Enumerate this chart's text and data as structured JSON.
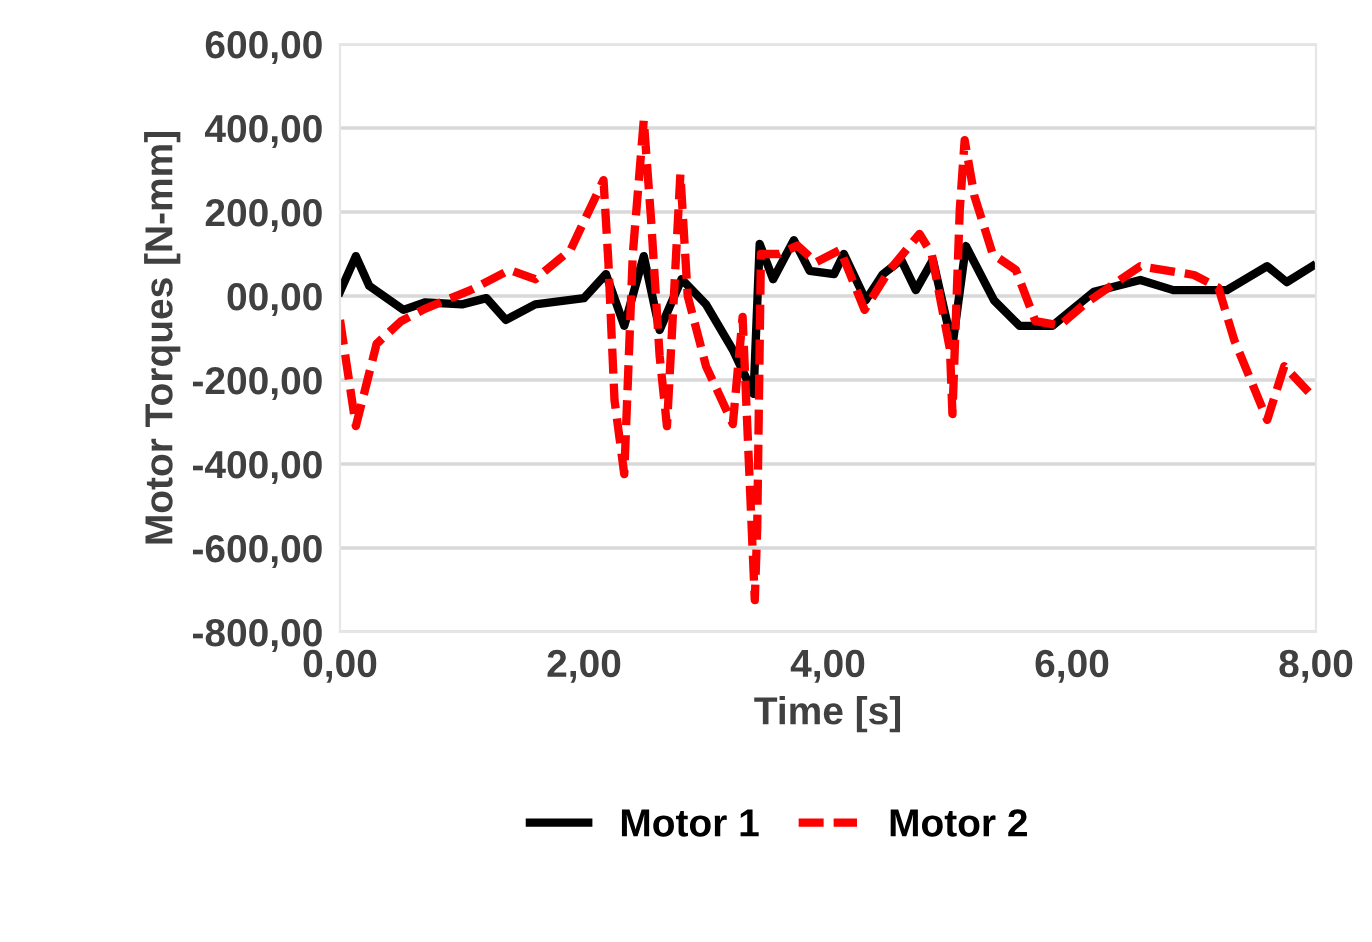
{
  "chart_data": {
    "type": "line",
    "xlabel": "Time [s]",
    "ylabel": "Motor Torques [N-mm]",
    "xlim": [
      0,
      8
    ],
    "xticks": [
      {
        "value": 0,
        "label": "0,00"
      },
      {
        "value": 2,
        "label": "2,00"
      },
      {
        "value": 4,
        "label": "4,00"
      },
      {
        "value": 6,
        "label": "6,00"
      },
      {
        "value": 8,
        "label": "8,00"
      }
    ],
    "ylim": [
      -800,
      600
    ],
    "yticks": [
      {
        "value": -800,
        "label": "-800,00"
      },
      {
        "value": -600,
        "label": "-600,00"
      },
      {
        "value": -400,
        "label": "-400,00"
      },
      {
        "value": -200,
        "label": "-200,00"
      },
      {
        "value": 0,
        "label": "00,00"
      },
      {
        "value": 200,
        "label": "200,00"
      },
      {
        "value": 400,
        "label": "400,00"
      },
      {
        "value": 600,
        "label": "600,00"
      }
    ],
    "grid": "y",
    "legend": "bottom",
    "series": [
      {
        "name": "Motor 1",
        "color": "#000000",
        "line_style": "solid",
        "x": [
          0,
          0.13,
          0.24,
          0.52,
          0.7,
          1.0,
          1.2,
          1.36,
          1.6,
          2.0,
          2.18,
          2.33,
          2.49,
          2.62,
          2.8,
          3.0,
          3.22,
          3.39,
          3.44,
          3.55,
          3.72,
          3.85,
          4.05,
          4.13,
          4.31,
          4.45,
          4.6,
          4.72,
          4.86,
          5.02,
          5.13,
          5.36,
          5.57,
          5.84,
          6.18,
          6.56,
          6.83,
          7.27,
          7.6,
          7.76,
          7.97
        ],
        "values": [
          10,
          95,
          24,
          -33,
          -15,
          -20,
          -5,
          -57,
          -20,
          -5,
          52,
          -71,
          95,
          -81,
          40,
          -20,
          -128,
          -233,
          124,
          40,
          133,
          60,
          52,
          100,
          -10,
          52,
          86,
          14,
          86,
          -119,
          119,
          -10,
          -71,
          -71,
          10,
          38,
          14,
          14,
          71,
          33,
          71
        ]
      },
      {
        "name": "Motor 2",
        "color": "#ff0000",
        "line_style": "dashed",
        "x": [
          0,
          0.13,
          0.3,
          0.5,
          0.7,
          1.07,
          1.39,
          1.6,
          1.89,
          2.16,
          2.2,
          2.25,
          2.33,
          2.4,
          2.49,
          2.55,
          2.62,
          2.68,
          2.79,
          2.85,
          3.0,
          3.22,
          3.3,
          3.4,
          3.42,
          3.45,
          3.6,
          3.75,
          3.9,
          4.1,
          4.3,
          4.5,
          4.75,
          4.85,
          5.0,
          5.02,
          5.08,
          5.12,
          5.2,
          5.35,
          5.54,
          5.7,
          5.9,
          6.1,
          6.3,
          6.56,
          7.0,
          7.2,
          7.33,
          7.6,
          7.74,
          7.97
        ],
        "values": [
          -57,
          -310,
          -114,
          -60,
          -30,
          14,
          62,
          40,
          110,
          276,
          80,
          -248,
          -424,
          100,
          419,
          181,
          -143,
          -310,
          290,
          0,
          -167,
          -305,
          -50,
          -724,
          -550,
          100,
          100,
          120,
          80,
          110,
          -33,
          60,
          148,
          100,
          -128,
          -281,
          205,
          371,
          238,
          100,
          62,
          -60,
          -70,
          -20,
          20,
          71,
          50,
          20,
          -105,
          -295,
          -167,
          -238
        ]
      }
    ]
  }
}
